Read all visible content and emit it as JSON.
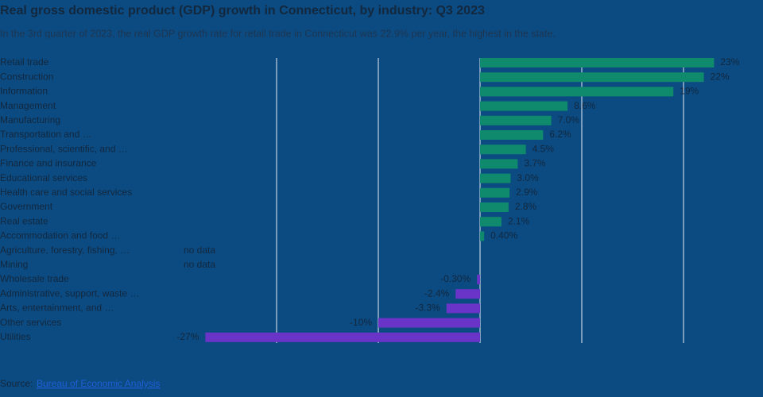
{
  "chart_data": {
    "type": "barh",
    "title": "Real gross domestic product (GDP) growth in Connecticut, by industry: Q3 2023",
    "subtitle": "In the 3rd quarter of 2023, the real GDP growth rate for retail trade in Connecticut was 22.9% per year, the highest in the state.",
    "categories": [
      "Retail trade",
      "Construction",
      "Information",
      "Management",
      "Manufacturing",
      "Transportation and …",
      "Professional, scientific, and …",
      "Finance and insurance",
      "Educational services",
      "Health care and social services",
      "Government",
      "Real estate",
      "Accommodation and food …",
      "Agriculture, forestry, fishing, …",
      "Mining",
      "Wholesale trade",
      "Administrative, support, waste …",
      "Arts, entertainment, and …",
      "Other services",
      "Utilities"
    ],
    "values": [
      23,
      22,
      19,
      8.6,
      7.0,
      6.2,
      4.5,
      3.7,
      3.0,
      2.9,
      2.8,
      2.1,
      0.4,
      null,
      null,
      -0.3,
      -2.4,
      -3.3,
      -10,
      -27
    ],
    "value_labels": [
      "23%",
      "22%",
      "19%",
      "8.6%",
      "7.0%",
      "6.2%",
      "4.5%",
      "3.7%",
      "3.0%",
      "2.9%",
      "2.8%",
      "2.1%",
      "0.40%",
      "no data",
      "no data",
      "-0.30%",
      "-2.4%",
      "-3.3%",
      "-10%",
      "-27%"
    ],
    "positive_color": "#0f8a6c",
    "negative_color": "#6b34c9",
    "xlim": [
      -28,
      25
    ],
    "xticks": [
      -20,
      -10,
      0,
      10,
      20
    ],
    "grid": true,
    "source_label": "Source:",
    "source_link": "Bureau of Economic Analysis"
  }
}
